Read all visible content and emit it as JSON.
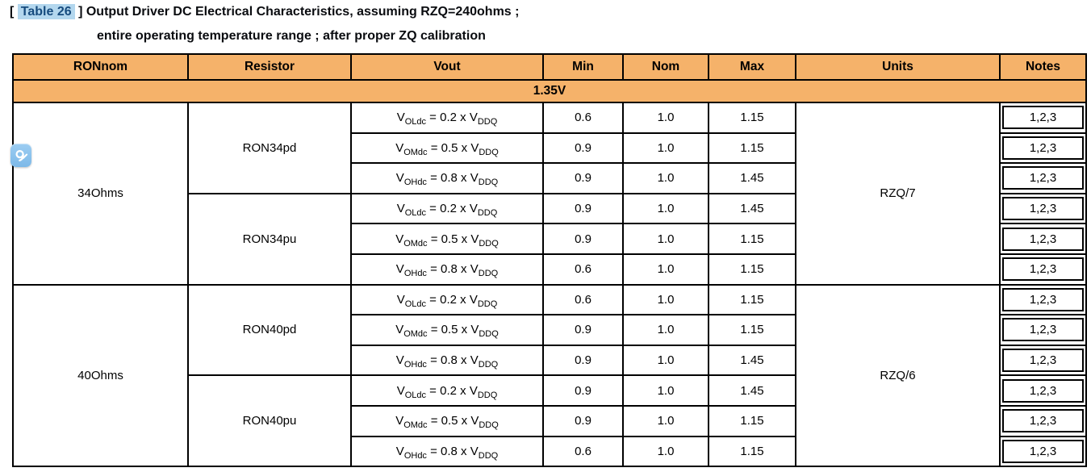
{
  "colors": {
    "header_orange": "#F5B26A",
    "table_border": "#000000",
    "title_text": "#0A0C10",
    "table_ref_text": "#164B7E",
    "table_ref_highlight": "#B3D7EE",
    "annotation_icon_blue": "#85C2ED"
  },
  "title": {
    "open_bracket": "[",
    "table_ref": "Table 26",
    "close_bracket": "]",
    "line1": "Output Driver DC Electrical Characteristics, assuming RZQ=240ohms ;",
    "line2": "entire operating temperature range ; after proper ZQ calibration"
  },
  "annotation": {
    "icon": "ink-comment-icon"
  },
  "table": {
    "headers": [
      "RONnom",
      "Resistor",
      "Vout",
      "Min",
      "Nom",
      "Max",
      "Units",
      "Notes"
    ],
    "section_label": "1.35V",
    "groups": [
      {
        "ron_nom": "34Ohms",
        "units": "RZQ/7",
        "resistors": [
          {
            "name": "RON34pd",
            "rows": [
              {
                "vout": {
                  "sym": "V",
                  "sub": "OLdc",
                  "mid": " = 0.2 x ",
                  "sym2": "V",
                  "sub2": "DDQ"
                },
                "min": "0.6",
                "nom": "1.0",
                "max": "1.15",
                "notes": "1,2,3"
              },
              {
                "vout": {
                  "sym": "V",
                  "sub": "OMdc",
                  "mid": " = 0.5 x ",
                  "sym2": "V",
                  "sub2": "DDQ"
                },
                "min": "0.9",
                "nom": "1.0",
                "max": "1.15",
                "notes": "1,2,3"
              },
              {
                "vout": {
                  "sym": "V",
                  "sub": "OHdc",
                  "mid": " = 0.8 x ",
                  "sym2": "V",
                  "sub2": "DDQ"
                },
                "min": "0.9",
                "nom": "1.0",
                "max": "1.45",
                "notes": "1,2,3"
              }
            ]
          },
          {
            "name": "RON34pu",
            "rows": [
              {
                "vout": {
                  "sym": "V",
                  "sub": "OLdc",
                  "mid": " = 0.2 x ",
                  "sym2": "V",
                  "sub2": "DDQ"
                },
                "min": "0.9",
                "nom": "1.0",
                "max": "1.45",
                "notes": "1,2,3"
              },
              {
                "vout": {
                  "sym": "V",
                  "sub": "OMdc",
                  "mid": " = 0.5 x ",
                  "sym2": "V",
                  "sub2": "DDQ"
                },
                "min": "0.9",
                "nom": "1.0",
                "max": "1.15",
                "notes": "1,2,3"
              },
              {
                "vout": {
                  "sym": "V",
                  "sub": "OHdc",
                  "mid": " = 0.8 x ",
                  "sym2": "V",
                  "sub2": "DDQ"
                },
                "min": "0.6",
                "nom": "1.0",
                "max": "1.15",
                "notes": "1,2,3"
              }
            ]
          }
        ]
      },
      {
        "ron_nom": "40Ohms",
        "units": "RZQ/6",
        "resistors": [
          {
            "name": "RON40pd",
            "rows": [
              {
                "vout": {
                  "sym": "V",
                  "sub": "OLdc",
                  "mid": " = 0.2 x ",
                  "sym2": "V",
                  "sub2": "DDQ"
                },
                "min": "0.6",
                "nom": "1.0",
                "max": "1.15",
                "notes": "1,2,3"
              },
              {
                "vout": {
                  "sym": "V",
                  "sub": "OMdc",
                  "mid": " = 0.5 x ",
                  "sym2": "V",
                  "sub2": "DDQ"
                },
                "min": "0.9",
                "nom": "1.0",
                "max": "1.15",
                "notes": "1,2,3"
              },
              {
                "vout": {
                  "sym": "V",
                  "sub": "OHdc",
                  "mid": " = 0.8 x ",
                  "sym2": "V",
                  "sub2": "DDQ"
                },
                "min": "0.9",
                "nom": "1.0",
                "max": "1.45",
                "notes": "1,2,3"
              }
            ]
          },
          {
            "name": "RON40pu",
            "rows": [
              {
                "vout": {
                  "sym": "V",
                  "sub": "OLdc",
                  "mid": " = 0.2 x ",
                  "sym2": "V",
                  "sub2": "DDQ"
                },
                "min": "0.9",
                "nom": "1.0",
                "max": "1.45",
                "notes": "1,2,3"
              },
              {
                "vout": {
                  "sym": "V",
                  "sub": "OMdc",
                  "mid": " = 0.5 x ",
                  "sym2": "V",
                  "sub2": "DDQ"
                },
                "min": "0.9",
                "nom": "1.0",
                "max": "1.15",
                "notes": "1,2,3"
              },
              {
                "vout": {
                  "sym": "V",
                  "sub": "OHdc",
                  "mid": " = 0.8 x ",
                  "sym2": "V",
                  "sub2": "DDQ"
                },
                "min": "0.6",
                "nom": "1.0",
                "max": "1.15",
                "notes": "1,2,3"
              }
            ]
          }
        ]
      }
    ]
  }
}
